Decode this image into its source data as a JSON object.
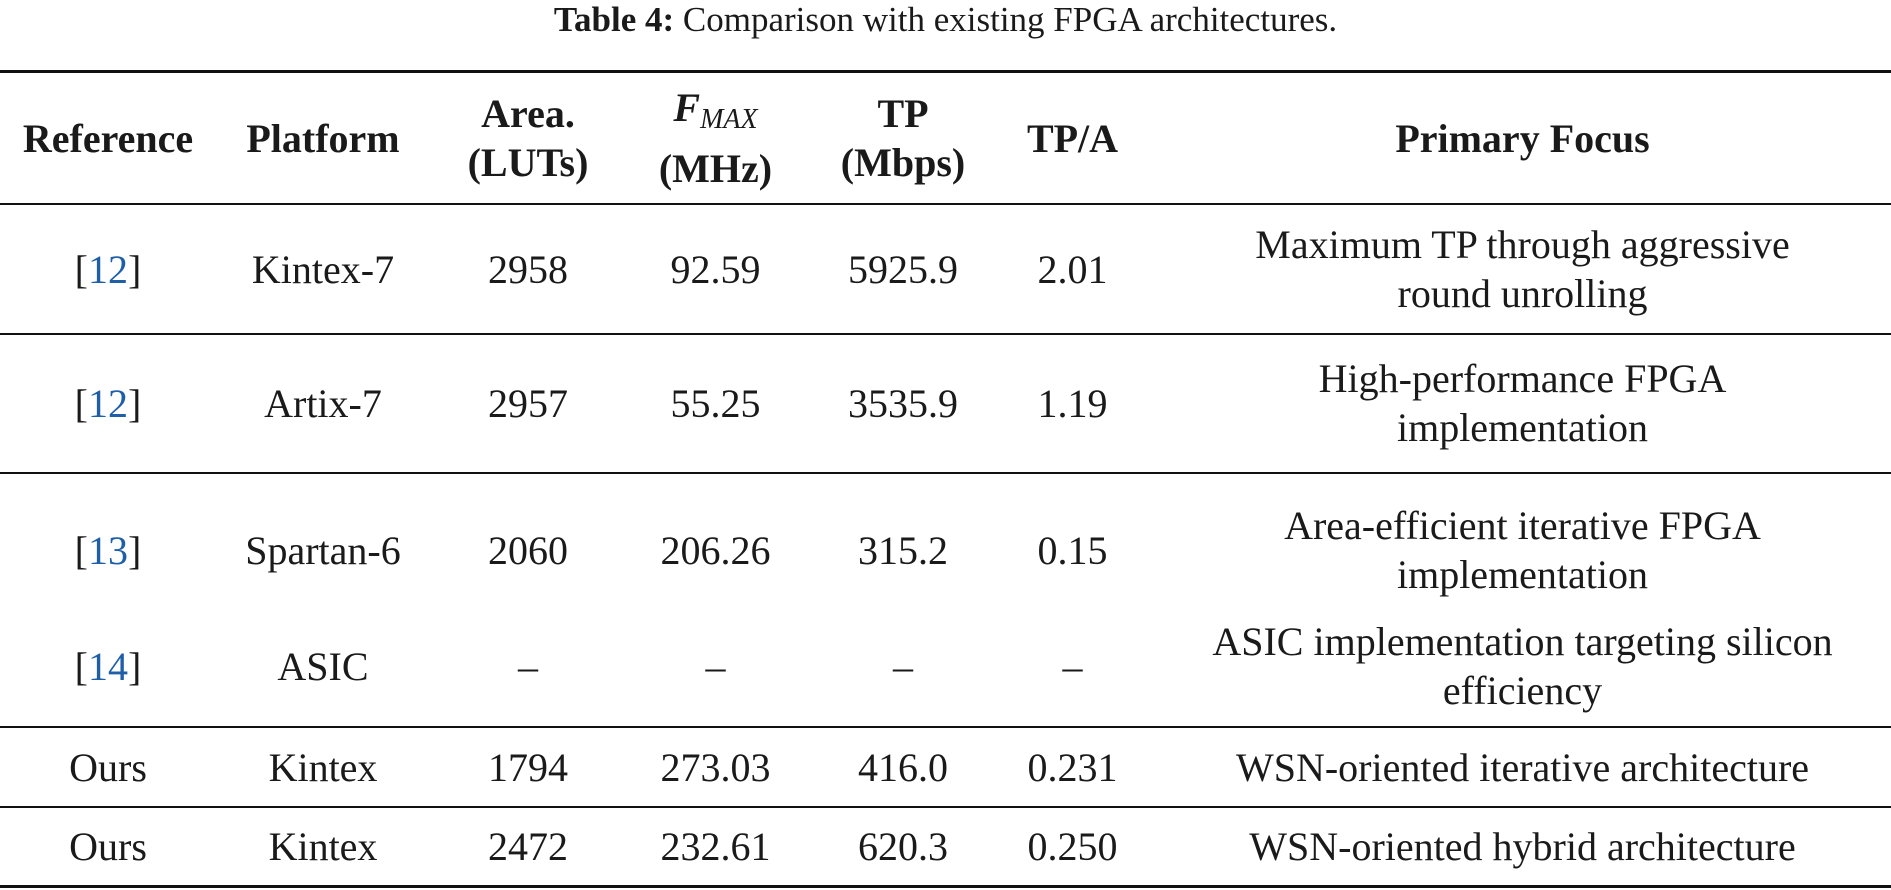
{
  "caption": {
    "label": "Table 4:",
    "text": "Comparison with existing FPGA architectures."
  },
  "header": {
    "reference": "Reference",
    "platform": "Platform",
    "area_l1": "Area.",
    "area_l2": "(LUTs)",
    "fmax_f": "F",
    "fmax_sub": "MAX",
    "fmax_l2": "(MHz)",
    "tp_l1": "TP",
    "tp_l2": "(Mbps)",
    "tpa": "TP/A",
    "focus": "Primary Focus"
  },
  "rows": [
    {
      "ref": "12",
      "platform": "Kintex-7",
      "area": "2958",
      "fmax": "92.59",
      "tp": "5925.9",
      "tpa": "2.01",
      "focus_l1": "Maximum TP through aggressive",
      "focus_l2": "round unrolling"
    },
    {
      "ref": "12",
      "platform": "Artix-7",
      "area": "2957",
      "fmax": "55.25",
      "tp": "3535.9",
      "tpa": "1.19",
      "focus_l1": "High-performance FPGA",
      "focus_l2": "implementation"
    },
    {
      "ref": "13",
      "platform": "Spartan-6",
      "area": "2060",
      "fmax": "206.26",
      "tp": "315.2",
      "tpa": "0.15",
      "focus_l1": "Area-efficient iterative FPGA",
      "focus_l2": "implementation"
    },
    {
      "ref": "14",
      "platform": "ASIC",
      "area": "–",
      "fmax": "–",
      "tp": "–",
      "tpa": "–",
      "focus_l1": "ASIC implementation targeting silicon",
      "focus_l2": "efficiency"
    },
    {
      "ref": "Ours",
      "platform": "Kintex",
      "area": "1794",
      "fmax": "273.03",
      "tp": "416.0",
      "tpa": "0.231",
      "focus_l1": "WSN-oriented iterative architecture"
    },
    {
      "ref": "Ours",
      "platform": "Kintex",
      "area": "2472",
      "fmax": "232.61",
      "tp": "620.3",
      "tpa": "0.250",
      "focus_l1": "WSN-oriented hybrid architecture"
    }
  ]
}
